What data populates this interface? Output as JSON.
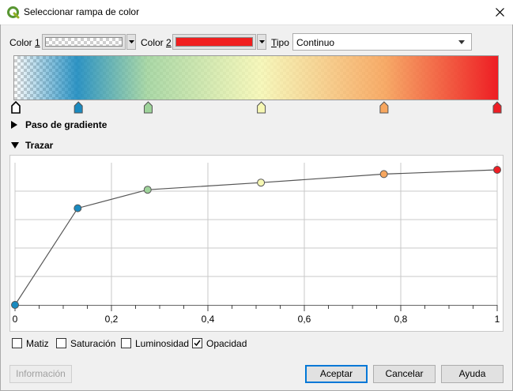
{
  "window": {
    "title": "Seleccionar rampa de color",
    "close_icon": "close-icon"
  },
  "colors": {
    "color1_label_pre": "Color ",
    "color1_label_key": "1",
    "color2_label_pre": "Color ",
    "color2_label_key": "2",
    "color1": "transparent",
    "color2": "#f01e1e",
    "type_label_key": "T",
    "type_label_rest": "ipo",
    "type_value": "Continuo"
  },
  "ramp": {
    "stops": [
      {
        "offset": 0.0,
        "color": "#ffffff",
        "opacity": 0.0
      },
      {
        "offset": 0.13,
        "color": "#1a8abf",
        "opacity": 0.9
      },
      {
        "offset": 0.275,
        "color": "#9ed39a",
        "opacity": 0.85
      },
      {
        "offset": 0.51,
        "color": "#f6f7b3",
        "opacity": 0.88
      },
      {
        "offset": 0.765,
        "color": "#f7a65e",
        "opacity": 0.93
      },
      {
        "offset": 1.0,
        "color": "#ee1e24",
        "opacity": 1.0
      }
    ]
  },
  "sections": {
    "gradient_step": "Paso de gradiente",
    "plot": "Trazar"
  },
  "plot": {
    "x_ticks": [
      "0",
      "0,2",
      "0,4",
      "0,6",
      "0,8",
      "1"
    ],
    "opacity_curve": [
      {
        "x": 0.0,
        "y": 0.0,
        "color": "#1a8abf"
      },
      {
        "x": 0.13,
        "y": 0.68,
        "color": "#1a8abf"
      },
      {
        "x": 0.275,
        "y": 0.81,
        "color": "#9ed39a"
      },
      {
        "x": 0.51,
        "y": 0.86,
        "color": "#f6f7b3"
      },
      {
        "x": 0.765,
        "y": 0.92,
        "color": "#f7a65e"
      },
      {
        "x": 1.0,
        "y": 0.95,
        "color": "#ee1e24"
      }
    ]
  },
  "channels": [
    {
      "label": "Matiz",
      "checked": false
    },
    {
      "label": "Saturación",
      "checked": false
    },
    {
      "label": "Luminosidad",
      "checked": false
    },
    {
      "label": "Opacidad",
      "checked": true
    }
  ],
  "buttons": {
    "info": "Información",
    "ok": "Aceptar",
    "cancel": "Cancelar",
    "help": "Ayuda"
  }
}
